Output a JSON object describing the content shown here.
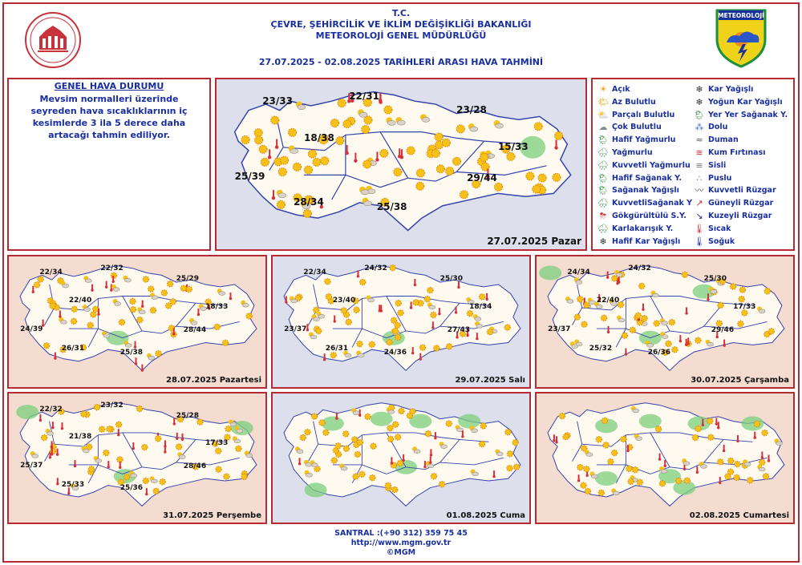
{
  "header": {
    "line1": "T.C.",
    "line2": "ÇEVRE, ŞEHİRCİLİK VE İKLİM DEĞİŞİKLİĞİ BAKANLIĞI",
    "line3": "METEOROLOJİ  GENEL  MÜDÜRLÜĞÜ",
    "date_range": "27.07.2025  -  02.08.2025    TARİHLERİ ARASI HAVA TAHMİNİ",
    "logo_text": "METEOROLOJİ"
  },
  "general": {
    "title": "GENEL HAVA DURUMU",
    "text": "Mevsim normalleri üzerinde seyreden hava sıcaklıklarının iç kesimlerde 3 ila 5 derece daha artacağı tahmin ediliyor."
  },
  "colors": {
    "frame": "#b52a33",
    "title_blue": "#1a2f9e",
    "map_sea": "#dde0ec",
    "map_sea_alt": "#f4dcd0",
    "land": "#fefaf0",
    "border_line": "#3344aa",
    "rain_green": "#7ccf7c",
    "sun": "#f6c21a"
  },
  "legend": [
    {
      "icon": "sun-icon",
      "symbol": "☀",
      "label": "Açık"
    },
    {
      "icon": "few-clouds-icon",
      "symbol": "🌤",
      "label": "Az Bulutlu"
    },
    {
      "icon": "partly-cloudy-icon",
      "symbol": "⛅",
      "label": "Parçalı Bulutlu"
    },
    {
      "icon": "cloudy-icon",
      "symbol": "☁",
      "label": "Çok Bulutlu"
    },
    {
      "icon": "light-rain-icon",
      "symbol": "🌦",
      "label": "Hafif Yağmurlu"
    },
    {
      "icon": "rain-icon",
      "symbol": "🌧",
      "label": "Yağmurlu"
    },
    {
      "icon": "heavy-rain-icon",
      "symbol": "🌧",
      "label": "Kuvvetli Yağmurlu"
    },
    {
      "icon": "light-shower-icon",
      "symbol": "🌦",
      "label": "Hafif Sağanak Y."
    },
    {
      "icon": "shower-icon",
      "symbol": "🌦",
      "label": "Sağanak Yağışlı"
    },
    {
      "icon": "heavy-shower-icon",
      "symbol": "🌧",
      "label": "KuvvetliSağanak Y"
    },
    {
      "icon": "thunderstorm-icon",
      "symbol": "⛈",
      "label": "Gökgürültülü S.Y."
    },
    {
      "icon": "sleet-icon",
      "symbol": "🌨",
      "label": "Karlakarışık Y."
    },
    {
      "icon": "light-snow-icon",
      "symbol": "❄",
      "label": "Hafif Kar Yağışlı"
    },
    {
      "icon": "snow-icon",
      "symbol": "❄",
      "label": "Kar Yağışlı"
    },
    {
      "icon": "heavy-snow-icon",
      "symbol": "❄",
      "label": "Yoğun Kar Yağışlı"
    },
    {
      "icon": "local-shower-icon",
      "symbol": "🌦",
      "label": "Yer Yer Sağanak Y."
    },
    {
      "icon": "hail-icon",
      "symbol": "⁂",
      "label": "Dolu"
    },
    {
      "icon": "smoke-icon",
      "symbol": "≈",
      "label": "Duman"
    },
    {
      "icon": "sandstorm-icon",
      "symbol": "≋",
      "label": "Kum Fırtınası"
    },
    {
      "icon": "fog-icon",
      "symbol": "≡",
      "label": "Sisli"
    },
    {
      "icon": "mist-icon",
      "symbol": "∴",
      "label": "Puslu"
    },
    {
      "icon": "strong-wind-icon",
      "symbol": "〰",
      "label": "Kuvvetli Rüzgar"
    },
    {
      "icon": "south-wind-icon",
      "symbol": "↗",
      "label": "Güneyli Rüzgar"
    },
    {
      "icon": "north-wind-icon",
      "symbol": "↘",
      "label": "Kuzeyli Rüzgar"
    },
    {
      "icon": "hot-icon",
      "symbol": "🌡",
      "label": "Sıcak"
    },
    {
      "icon": "cold-icon",
      "symbol": "🌡",
      "label": "Soğuk"
    }
  ],
  "maps": [
    {
      "date": "27.07.2025 Pazar",
      "temps": [
        {
          "text": "23/33",
          "region": "marmara"
        },
        {
          "text": "22/31",
          "region": "west-black-sea"
        },
        {
          "text": "23/28",
          "region": "east-black-sea"
        },
        {
          "text": "18/38",
          "region": "central-anatolia"
        },
        {
          "text": "15/33",
          "region": "east-anatolia"
        },
        {
          "text": "25/39",
          "region": "aegean"
        },
        {
          "text": "28/34",
          "region": "mediterranean-west"
        },
        {
          "text": "25/38",
          "region": "mediterranean-east"
        },
        {
          "text": "29/44",
          "region": "southeast-anatolia"
        }
      ]
    },
    {
      "date": "28.07.2025 Pazartesi",
      "temps": [
        {
          "text": "22/34",
          "region": "marmara"
        },
        {
          "text": "22/32",
          "region": "west-black-sea"
        },
        {
          "text": "25/29",
          "region": "east-black-sea"
        },
        {
          "text": "22/40",
          "region": "central-anatolia"
        },
        {
          "text": "18/33",
          "region": "east-anatolia"
        },
        {
          "text": "24/39",
          "region": "aegean"
        },
        {
          "text": "26/31",
          "region": "mediterranean-west"
        },
        {
          "text": "25/38",
          "region": "mediterranean-east"
        },
        {
          "text": "28/44",
          "region": "southeast-anatolia"
        }
      ]
    },
    {
      "date": "29.07.2025 Salı",
      "temps": [
        {
          "text": "22/34",
          "region": "marmara"
        },
        {
          "text": "24/32",
          "region": "west-black-sea"
        },
        {
          "text": "25/30",
          "region": "east-black-sea"
        },
        {
          "text": "23/40",
          "region": "central-anatolia"
        },
        {
          "text": "18/34",
          "region": "east-anatolia"
        },
        {
          "text": "23/37",
          "region": "aegean"
        },
        {
          "text": "26/31",
          "region": "mediterranean-west"
        },
        {
          "text": "24/36",
          "region": "mediterranean-east"
        },
        {
          "text": "27/43",
          "region": "southeast-anatolia"
        }
      ]
    },
    {
      "date": "30.07.2025 Çarşamba",
      "temps": [
        {
          "text": "24/34",
          "region": "marmara"
        },
        {
          "text": "24/32",
          "region": "west-black-sea"
        },
        {
          "text": "25/30",
          "region": "east-black-sea"
        },
        {
          "text": "22/40",
          "region": "central-anatolia"
        },
        {
          "text": "17/33",
          "region": "east-anatolia"
        },
        {
          "text": "23/37",
          "region": "aegean"
        },
        {
          "text": "25/32",
          "region": "mediterranean-west"
        },
        {
          "text": "26/36",
          "region": "mediterranean-east"
        },
        {
          "text": "29/46",
          "region": "southeast-anatolia"
        }
      ]
    },
    {
      "date": "31.07.2025 Perşembe",
      "temps": [
        {
          "text": "22/32",
          "region": "marmara"
        },
        {
          "text": "23/32",
          "region": "west-black-sea"
        },
        {
          "text": "25/28",
          "region": "east-black-sea"
        },
        {
          "text": "21/38",
          "region": "central-anatolia"
        },
        {
          "text": "17/33",
          "region": "east-anatolia"
        },
        {
          "text": "25/37",
          "region": "aegean"
        },
        {
          "text": "25/33",
          "region": "mediterranean-west"
        },
        {
          "text": "25/36",
          "region": "mediterranean-east"
        },
        {
          "text": "28/46",
          "region": "southeast-anatolia"
        }
      ]
    },
    {
      "date": "01.08.2025 Cuma",
      "temps": []
    },
    {
      "date": "02.08.2025 Cumartesi",
      "temps": []
    }
  ],
  "footer": {
    "phone": "SANTRAL :(+90 312) 359 75 45",
    "url": "http://www.mgm.gov.tr",
    "copyright": "©MGM"
  }
}
